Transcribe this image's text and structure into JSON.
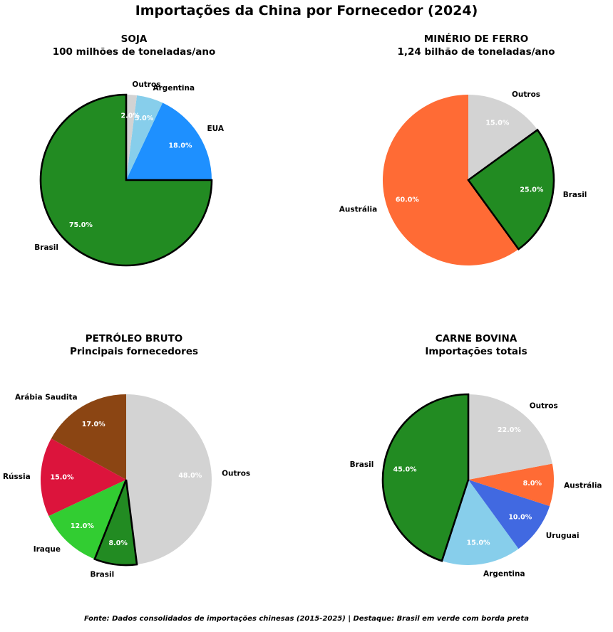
{
  "title": "Importações da China por Fornecedor (2024)",
  "footer": "Fonte: Dados consolidados de importações chinesas (2015-2025) | Destaque: Brasil em verde com borda preta",
  "highlight": "Brasil",
  "chart_data": [
    {
      "type": "pie",
      "title": "SOJA",
      "subtitle": "100 milhões de toneladas/ano",
      "start_angle_deg": 90,
      "direction": "counterclockwise",
      "slices": [
        {
          "label": "Brasil",
          "value": 75.0,
          "pct": "75.0%",
          "color": "#228B22"
        },
        {
          "label": "EUA",
          "value": 18.0,
          "pct": "18.0%",
          "color": "#1E90FF"
        },
        {
          "label": "Argentina",
          "value": 5.0,
          "pct": "5.0%",
          "color": "#87CEEB"
        },
        {
          "label": "Outros",
          "value": 2.0,
          "pct": "2.0%",
          "color": "#D3D3D3"
        }
      ]
    },
    {
      "type": "pie",
      "title": "MINÉRIO DE FERRO",
      "subtitle": "1,24 bilhão de toneladas/ano",
      "start_angle_deg": 90,
      "direction": "counterclockwise",
      "slices": [
        {
          "label": "Austrália",
          "value": 60.0,
          "pct": "60.0%",
          "color": "#FF6B35"
        },
        {
          "label": "Brasil",
          "value": 25.0,
          "pct": "25.0%",
          "color": "#228B22"
        },
        {
          "label": "Outros",
          "value": 15.0,
          "pct": "15.0%",
          "color": "#D3D3D3"
        }
      ]
    },
    {
      "type": "pie",
      "title": "PETRÓLEO BRUTO",
      "subtitle": "Principais fornecedores",
      "start_angle_deg": 90,
      "direction": "counterclockwise",
      "slices": [
        {
          "label": "Arábia Saudita",
          "value": 17.0,
          "pct": "17.0%",
          "color": "#8B4513"
        },
        {
          "label": "Rússia",
          "value": 15.0,
          "pct": "15.0%",
          "color": "#DC143C"
        },
        {
          "label": "Iraque",
          "value": 12.0,
          "pct": "12.0%",
          "color": "#32CD32"
        },
        {
          "label": "Brasil",
          "value": 8.0,
          "pct": "8.0%",
          "color": "#228B22"
        },
        {
          "label": "Outros",
          "value": 48.0,
          "pct": "48.0%",
          "color": "#D3D3D3"
        }
      ]
    },
    {
      "type": "pie",
      "title": "CARNE BOVINA",
      "subtitle": "Importações totais",
      "start_angle_deg": 90,
      "direction": "counterclockwise",
      "slices": [
        {
          "label": "Brasil",
          "value": 45.0,
          "pct": "45.0%",
          "color": "#228B22"
        },
        {
          "label": "Argentina",
          "value": 15.0,
          "pct": "15.0%",
          "color": "#87CEEB"
        },
        {
          "label": "Uruguai",
          "value": 10.0,
          "pct": "10.0%",
          "color": "#4169E1"
        },
        {
          "label": "Austrália",
          "value": 8.0,
          "pct": "8.0%",
          "color": "#FF6B35"
        },
        {
          "label": "Outros",
          "value": 22.0,
          "pct": "22.0%",
          "color": "#D3D3D3"
        }
      ]
    }
  ]
}
